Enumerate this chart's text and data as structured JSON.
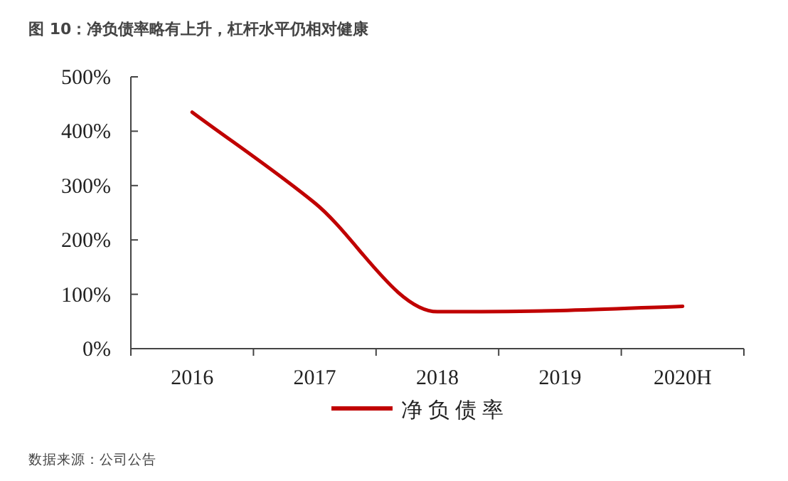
{
  "chart_data": {
    "type": "line",
    "title": "图 10：净负债率略有上升，杠杆水平仍相对健康",
    "annotations": [
      "数据来源：公司公告"
    ],
    "categories": [
      "2016",
      "2017",
      "2018",
      "2019",
      "2020H"
    ],
    "series": [
      {
        "name": "净负债率",
        "color": "#c00000",
        "values": [
          435,
          268,
          68,
          70,
          78
        ]
      }
    ],
    "ylim": [
      0,
      500
    ],
    "yticks": [
      {
        "value": 0,
        "label": "0%"
      },
      {
        "value": 100,
        "label": "100%"
      },
      {
        "value": 200,
        "label": "200%"
      },
      {
        "value": 300,
        "label": "300%"
      },
      {
        "value": 400,
        "label": "400%"
      },
      {
        "value": 500,
        "label": "500%"
      }
    ],
    "legend": "bottom"
  }
}
